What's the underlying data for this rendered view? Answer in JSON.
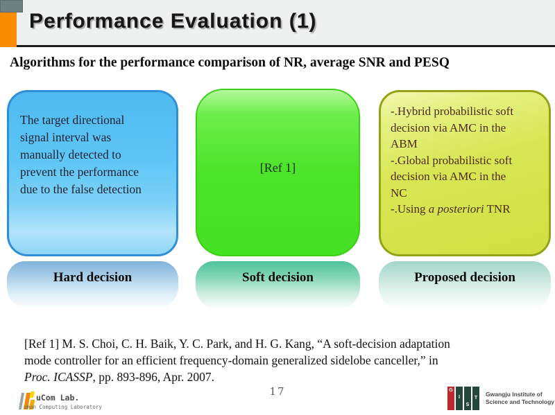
{
  "slide": {
    "title": "Performance Evaluation (1)",
    "subtitle": "Algorithms for the performance comparison of NR, average SNR and PESQ",
    "page_number": "17"
  },
  "boxes": [
    {
      "label": "Hard decision",
      "body_lines": [
        "The target directional",
        "signal interval was",
        "manually detected to",
        "prevent the performance",
        "due to the false detection"
      ],
      "fill": "#5ec6f6",
      "border": "#2f8ed9"
    },
    {
      "label": "Soft decision",
      "body": "[Ref 1]",
      "fill": "#4ce42a",
      "border": "#3bce15"
    },
    {
      "label": "Proposed decision",
      "body_lines": [
        "-.Hybrid probabilistic soft",
        "decision via AMC in the",
        "ABM",
        "-.Global probabilistic soft",
        "decision via AMC in the",
        "NC"
      ],
      "last_line_prefix": "-.Using ",
      "last_line_italic": "a posteriori",
      "last_line_suffix": " TNR",
      "fill": "#d8e654",
      "border": "#93a315"
    }
  ],
  "reference": {
    "wrapped_lines": [
      "[Ref 1] M. S. Choi, C. H. Baik, Y. C. Park, and H. G. Kang, “A soft-decision adaptation",
      "mode controller for an efficient frequency-domain generalized sidelobe canceller,”  in"
    ],
    "italic": "Proc. ICASSP",
    "suffix": ", pp. 893-896, Apr. 2007."
  },
  "footer": {
    "hucom": {
      "line1": "uCom Lab.",
      "line2": "uman Computing Laboratory"
    },
    "gist": {
      "letters": {
        "g": "G",
        "i": "I",
        "s": "S",
        "t": "T"
      },
      "name_line1": "Gwangju Institute of",
      "name_line2": "Science and Technology"
    }
  }
}
